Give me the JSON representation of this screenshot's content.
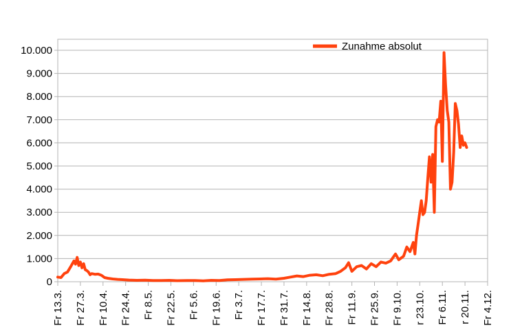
{
  "colors": {
    "series": "#ff420e",
    "grid": "#b3b3b3",
    "axis": "#b3b3b3",
    "background": "#ffffff"
  },
  "chart_data": {
    "type": "line",
    "title": "",
    "xlabel": "",
    "ylabel": "",
    "ylim": [
      0,
      10000
    ],
    "grid": true,
    "legend": {
      "position": "top-right",
      "entries": [
        "Zunahme absolut"
      ]
    },
    "y_ticks": [
      {
        "value": 0,
        "label": "0"
      },
      {
        "value": 1000,
        "label": "1.000"
      },
      {
        "value": 2000,
        "label": "2.000"
      },
      {
        "value": 3000,
        "label": "3.000"
      },
      {
        "value": 4000,
        "label": "4.000"
      },
      {
        "value": 5000,
        "label": "5.000"
      },
      {
        "value": 6000,
        "label": "6.000"
      },
      {
        "value": 7000,
        "label": "7.000"
      },
      {
        "value": 8000,
        "label": "8.000"
      },
      {
        "value": 9000,
        "label": "9.000"
      },
      {
        "value": 10000,
        "label": "10.000"
      }
    ],
    "x_ticks": [
      "Fr 13.3.",
      "Fr 27.3.",
      "Fr 10.4.",
      "Fr 24.4.",
      "Fr 8.5.",
      "Fr 22.5.",
      "Fr 5.6.",
      "Fr 19.6.",
      "Fr 3.7.",
      "Fr 17.7.",
      "Fr 31.7.",
      "Fr 14.8.",
      "Fr 28.8.",
      "Fr 11.9.",
      "Fr 25.9.",
      "Fr 9.10.",
      "r 23.10.",
      "Fr 6.11.",
      "r 20.11.",
      "Fr 4.12."
    ],
    "x_range": [
      "2020-03-13",
      "2020-12-04"
    ],
    "series": [
      {
        "name": "Zunahme absolut",
        "x": [
          "2020-03-13",
          "2020-03-15",
          "2020-03-17",
          "2020-03-19",
          "2020-03-21",
          "2020-03-23",
          "2020-03-24",
          "2020-03-25",
          "2020-03-26",
          "2020-03-27",
          "2020-03-28",
          "2020-03-29",
          "2020-03-30",
          "2020-03-31",
          "2020-04-01",
          "2020-04-02",
          "2020-04-03",
          "2020-04-05",
          "2020-04-07",
          "2020-04-09",
          "2020-04-11",
          "2020-04-13",
          "2020-04-16",
          "2020-04-19",
          "2020-04-22",
          "2020-04-26",
          "2020-05-01",
          "2020-05-06",
          "2020-05-11",
          "2020-05-16",
          "2020-05-21",
          "2020-05-26",
          "2020-06-01",
          "2020-06-06",
          "2020-06-11",
          "2020-06-16",
          "2020-06-21",
          "2020-06-26",
          "2020-07-01",
          "2020-07-06",
          "2020-07-11",
          "2020-07-16",
          "2020-07-21",
          "2020-07-26",
          "2020-07-31",
          "2020-08-04",
          "2020-08-08",
          "2020-08-12",
          "2020-08-16",
          "2020-08-20",
          "2020-08-24",
          "2020-08-28",
          "2020-09-01",
          "2020-09-04",
          "2020-09-07",
          "2020-09-09",
          "2020-09-11",
          "2020-09-14",
          "2020-09-17",
          "2020-09-20",
          "2020-09-23",
          "2020-09-26",
          "2020-09-29",
          "2020-10-02",
          "2020-10-05",
          "2020-10-08",
          "2020-10-10",
          "2020-10-13",
          "2020-10-15",
          "2020-10-17",
          "2020-10-19",
          "2020-10-20",
          "2020-10-21",
          "2020-10-22",
          "2020-10-23",
          "2020-10-24",
          "2020-10-25",
          "2020-10-26",
          "2020-10-27",
          "2020-10-28",
          "2020-10-29",
          "2020-10-30",
          "2020-10-31",
          "2020-11-01",
          "2020-11-02",
          "2020-11-03",
          "2020-11-04",
          "2020-11-05",
          "2020-11-06",
          "2020-11-07",
          "2020-11-08",
          "2020-11-09",
          "2020-11-10",
          "2020-11-11",
          "2020-11-12",
          "2020-11-13",
          "2020-11-14",
          "2020-11-15",
          "2020-11-16",
          "2020-11-17",
          "2020-11-18",
          "2020-11-19",
          "2020-11-20",
          "2020-11-21"
        ],
        "y": [
          200,
          180,
          350,
          420,
          650,
          900,
          760,
          1050,
          700,
          850,
          600,
          780,
          520,
          480,
          420,
          300,
          350,
          320,
          330,
          280,
          180,
          150,
          120,
          100,
          90,
          70,
          60,
          65,
          50,
          55,
          60,
          45,
          50,
          55,
          40,
          60,
          50,
          80,
          90,
          100,
          110,
          120,
          130,
          110,
          150,
          200,
          250,
          220,
          280,
          300,
          260,
          320,
          350,
          450,
          600,
          820,
          450,
          650,
          700,
          550,
          780,
          650,
          850,
          800,
          900,
          1200,
          950,
          1100,
          1500,
          1300,
          1700,
          1200,
          2000,
          2500,
          3000,
          3500,
          2900,
          3000,
          3500,
          4500,
          5400,
          4300,
          5500,
          3000,
          6700,
          7000,
          6900,
          7800,
          5200,
          9900,
          8500,
          7400,
          6900,
          4000,
          4300,
          5600,
          7700,
          7400,
          6800,
          5800,
          6300,
          5900,
          6000,
          5800
        ]
      }
    ]
  }
}
